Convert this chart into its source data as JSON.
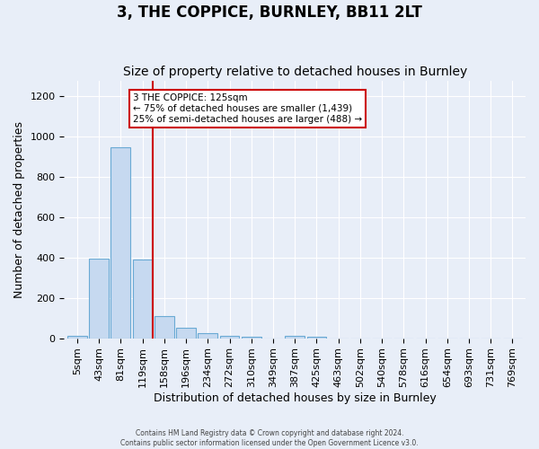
{
  "title": "3, THE COPPICE, BURNLEY, BB11 2LT",
  "subtitle": "Size of property relative to detached houses in Burnley",
  "xlabel": "Distribution of detached houses by size in Burnley",
  "ylabel": "Number of detached properties",
  "categories": [
    "5sqm",
    "43sqm",
    "81sqm",
    "119sqm",
    "158sqm",
    "196sqm",
    "234sqm",
    "272sqm",
    "310sqm",
    "349sqm",
    "387sqm",
    "425sqm",
    "463sqm",
    "502sqm",
    "540sqm",
    "578sqm",
    "616sqm",
    "654sqm",
    "693sqm",
    "731sqm",
    "769sqm"
  ],
  "values": [
    10,
    395,
    950,
    390,
    108,
    52,
    26,
    13,
    5,
    0,
    13,
    5,
    0,
    0,
    0,
    0,
    0,
    0,
    0,
    0,
    0
  ],
  "bar_color": "#c6d9f0",
  "bar_edge_color": "#6aaad4",
  "vline_x_index": 3,
  "vline_color": "#cc0000",
  "annotation_text": "3 THE COPPICE: 125sqm\n← 75% of detached houses are smaller (1,439)\n25% of semi-detached houses are larger (488) →",
  "annotation_box_color": "#ffffff",
  "annotation_box_edge": "#cc0000",
  "ylim": [
    0,
    1280
  ],
  "yticks": [
    0,
    200,
    400,
    600,
    800,
    1000,
    1200
  ],
  "title_fontsize": 12,
  "subtitle_fontsize": 10,
  "xlabel_fontsize": 9,
  "ylabel_fontsize": 9,
  "tick_fontsize": 8,
  "footer_text": "Contains HM Land Registry data © Crown copyright and database right 2024.\nContains public sector information licensed under the Open Government Licence v3.0.",
  "background_color": "#e8eef8",
  "grid_color": "#ffffff"
}
